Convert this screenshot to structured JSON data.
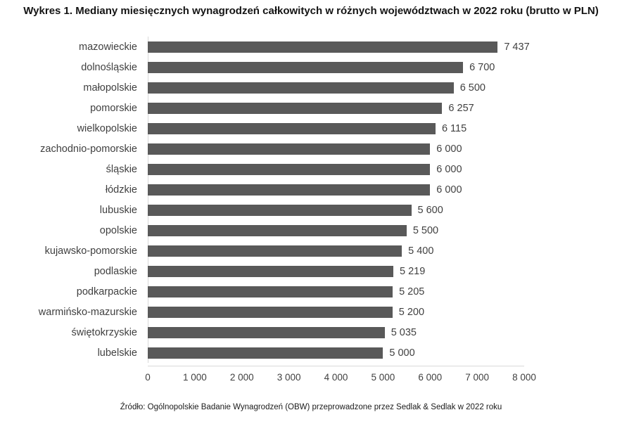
{
  "source": "Źródło: Ogólnopolskie Badanie Wynagrodzeń (OBW) przeprowadzone przez Sedlak & Sedlak w 2022 roku",
  "chart_data": {
    "type": "bar",
    "orientation": "horizontal",
    "title": "Wykres 1. Mediany miesięcznych wynagrodzeń całkowitych w różnych województwach w 2022 roku (brutto w PLN)",
    "xlabel": "",
    "ylabel": "",
    "categories": [
      "mazowieckie",
      "dolnośląskie",
      "małopolskie",
      "pomorskie",
      "wielkopolskie",
      "zachodnio-pomorskie",
      "śląskie",
      "łódzkie",
      "lubuskie",
      "opolskie",
      "kujawsko-pomorskie",
      "podlaskie",
      "podkarpackie",
      "warmińsko-mazurskie",
      "świętokrzyskie",
      "lubelskie"
    ],
    "values": [
      7437,
      6700,
      6500,
      6257,
      6115,
      6000,
      6000,
      6000,
      5600,
      5500,
      5400,
      5219,
      5205,
      5200,
      5035,
      5000
    ],
    "value_labels": [
      "7 437",
      "6 700",
      "6 500",
      "6 257",
      "6 115",
      "6 000",
      "6 000",
      "6 000",
      "5 600",
      "5 500",
      "5 400",
      "5 219",
      "5 205",
      "5 200",
      "5 035",
      "5 000"
    ],
    "xlim": [
      0,
      8000
    ],
    "x_ticks": [
      0,
      1000,
      2000,
      3000,
      4000,
      5000,
      6000,
      7000,
      8000
    ],
    "x_tick_labels": [
      "0",
      "1 000",
      "2 000",
      "3 000",
      "4 000",
      "5 000",
      "6 000",
      "7 000",
      "8 000"
    ],
    "bar_color": "#595959",
    "grid": false,
    "legend": false
  }
}
